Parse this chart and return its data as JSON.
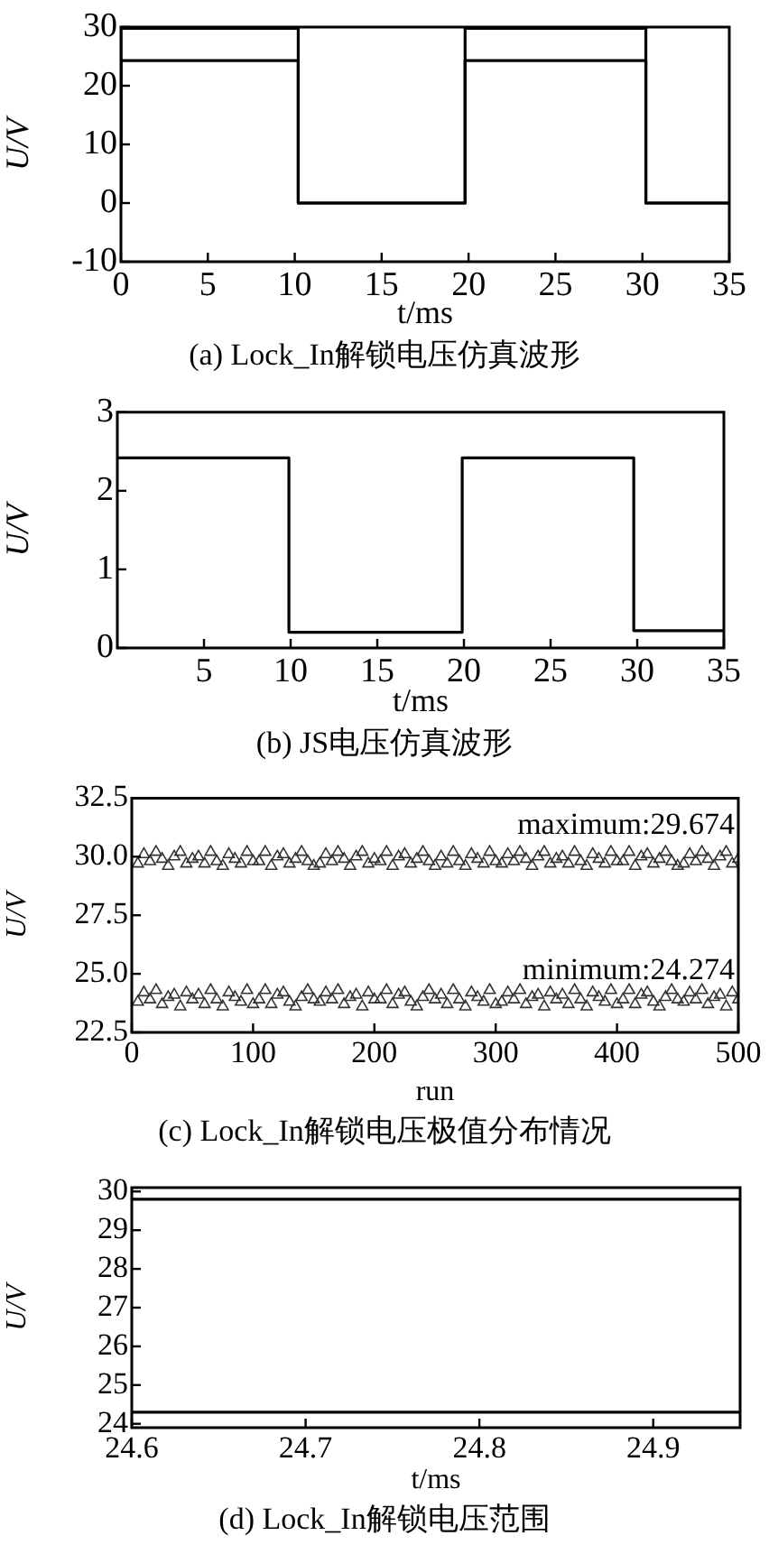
{
  "chart_data": [
    {
      "type": "line",
      "title": "(a) Lock_In解锁电压仿真波形",
      "xlabel": "t/ms",
      "ylabel": "U/V",
      "xlim": [
        0,
        35
      ],
      "ylim": [
        -10,
        30
      ],
      "xticks": [
        0,
        5,
        10,
        15,
        20,
        25,
        30,
        35
      ],
      "yticks": [
        -10,
        0,
        10,
        20,
        30
      ],
      "marker": "none",
      "series": [
        {
          "color": "#000000",
          "x": [
            0,
            0,
            10.2,
            10.2,
            19.8,
            19.8,
            30.2,
            30.2,
            35
          ],
          "values": [
            0,
            29.8,
            29.8,
            0,
            0,
            29.8,
            29.8,
            0,
            0
          ]
        },
        {
          "color": "#000000",
          "x": [
            0,
            0,
            10.2,
            10.2,
            19.8,
            19.8,
            30.2,
            30.2,
            35
          ],
          "values": [
            0,
            24.3,
            24.3,
            0,
            0,
            24.3,
            24.3,
            0,
            0
          ]
        }
      ]
    },
    {
      "type": "line",
      "title": "(b) JS电压仿真波形",
      "xlabel": "t/ms",
      "ylabel": "U/V",
      "xlim": [
        0,
        35
      ],
      "ylim": [
        0,
        3
      ],
      "xticks": [
        5,
        10,
        15,
        20,
        25,
        30,
        35
      ],
      "yticks": [
        0,
        1,
        2,
        3
      ],
      "marker": "none",
      "series": [
        {
          "color": "#000000",
          "x": [
            0,
            9.9,
            9.9,
            19.9,
            19.9,
            29.8,
            29.8,
            35
          ],
          "values": [
            2.42,
            2.42,
            0.2,
            0.2,
            2.42,
            2.42,
            0.22,
            0.22
          ]
        }
      ]
    },
    {
      "type": "scatter",
      "title": "(c) Lock_In解锁电压极值分布情况",
      "xlabel": "run",
      "ylabel": "U/V",
      "xlim": [
        0,
        500
      ],
      "ylim": [
        22.5,
        32.5
      ],
      "xticks": [
        0,
        100,
        200,
        300,
        400,
        500
      ],
      "yticks": [
        {
          "value": 22.5,
          "label": "22.5"
        },
        {
          "value": 25,
          "label": "25.0"
        },
        {
          "value": 27.5,
          "label": "27.5"
        },
        {
          "value": 30,
          "label": "30.0"
        },
        {
          "value": 32.5,
          "label": "32.5"
        }
      ],
      "marker": "triangle",
      "annotations": [
        "maximum:29.674",
        "minimum:24.274"
      ],
      "series": [
        {
          "color": "#333333",
          "x": [
            5,
            10,
            15,
            20,
            25,
            30,
            35,
            40,
            45,
            50,
            55,
            60,
            65,
            70,
            75,
            80,
            85,
            90,
            95,
            100,
            105,
            110,
            115,
            120,
            125,
            130,
            135,
            140,
            145,
            150,
            155,
            160,
            165,
            170,
            175,
            180,
            185,
            190,
            195,
            200,
            205,
            210,
            215,
            220,
            225,
            230,
            235,
            240,
            245,
            250,
            255,
            260,
            265,
            270,
            275,
            280,
            285,
            290,
            295,
            300,
            305,
            310,
            315,
            320,
            325,
            330,
            335,
            340,
            345,
            350,
            355,
            360,
            365,
            370,
            375,
            380,
            385,
            390,
            395,
            400,
            405,
            410,
            415,
            420,
            425,
            430,
            435,
            440,
            445,
            450,
            455,
            460,
            465,
            470,
            475,
            480,
            485,
            490,
            495,
            500
          ],
          "values": [
            29.7,
            30.1,
            29.8,
            30.2,
            29.9,
            29.6,
            30.0,
            30.2,
            29.7,
            29.9,
            30.0,
            29.7,
            30.2,
            29.8,
            29.6,
            30.1,
            29.9,
            29.7,
            30.2,
            29.8,
            29.8,
            30.2,
            29.6,
            30.0,
            30.1,
            29.7,
            29.9,
            30.2,
            29.8,
            29.6,
            29.7,
            30.1,
            29.8,
            30.2,
            29.9,
            29.6,
            30.0,
            30.2,
            29.7,
            29.9,
            29.8,
            30.2,
            29.6,
            30.0,
            30.1,
            29.7,
            29.9,
            30.2,
            29.8,
            29.6,
            30.0,
            29.7,
            30.2,
            29.8,
            29.6,
            30.1,
            29.9,
            29.7,
            30.2,
            29.8,
            29.7,
            30.1,
            29.8,
            30.2,
            29.9,
            29.6,
            30.0,
            30.2,
            29.7,
            29.9,
            30.0,
            29.7,
            30.2,
            29.8,
            29.6,
            30.1,
            29.9,
            29.7,
            30.2,
            29.8,
            29.8,
            30.2,
            29.6,
            30.0,
            30.1,
            29.7,
            29.9,
            30.2,
            29.8,
            29.6,
            29.7,
            30.1,
            29.8,
            30.2,
            29.9,
            29.6,
            30.0,
            30.2,
            29.7,
            29.9
          ]
        },
        {
          "color": "#333333",
          "x": [
            5,
            10,
            15,
            20,
            25,
            30,
            35,
            40,
            45,
            50,
            55,
            60,
            65,
            70,
            75,
            80,
            85,
            90,
            95,
            100,
            105,
            110,
            115,
            120,
            125,
            130,
            135,
            140,
            145,
            150,
            155,
            160,
            165,
            170,
            175,
            180,
            185,
            190,
            195,
            200,
            205,
            210,
            215,
            220,
            225,
            230,
            235,
            240,
            245,
            250,
            255,
            260,
            265,
            270,
            275,
            280,
            285,
            290,
            295,
            300,
            305,
            310,
            315,
            320,
            325,
            330,
            335,
            340,
            345,
            350,
            355,
            360,
            365,
            370,
            375,
            380,
            385,
            390,
            395,
            400,
            405,
            410,
            415,
            420,
            425,
            430,
            435,
            440,
            445,
            450,
            455,
            460,
            465,
            470,
            475,
            480,
            485,
            490,
            495,
            500
          ],
          "values": [
            23.8,
            24.2,
            23.9,
            24.3,
            23.7,
            24.0,
            24.1,
            23.6,
            24.2,
            23.9,
            24.1,
            23.7,
            24.3,
            23.9,
            23.6,
            24.2,
            24.0,
            23.8,
            24.3,
            23.7,
            23.9,
            24.3,
            23.7,
            24.1,
            24.2,
            23.8,
            23.6,
            24.0,
            24.3,
            23.9,
            23.8,
            24.2,
            23.9,
            24.3,
            23.7,
            24.0,
            24.1,
            23.6,
            24.2,
            23.9,
            23.9,
            24.3,
            23.7,
            24.1,
            24.2,
            23.8,
            23.6,
            24.0,
            24.3,
            23.9,
            24.1,
            23.7,
            24.3,
            23.9,
            23.6,
            24.2,
            24.0,
            23.8,
            24.3,
            23.7,
            23.8,
            24.2,
            23.9,
            24.3,
            23.7,
            24.0,
            24.1,
            23.6,
            24.2,
            23.9,
            24.1,
            23.7,
            24.3,
            23.9,
            23.6,
            24.2,
            24.0,
            23.8,
            24.3,
            23.7,
            23.9,
            24.3,
            23.7,
            24.1,
            24.2,
            23.8,
            23.6,
            24.0,
            24.3,
            23.9,
            23.8,
            24.2,
            23.9,
            24.3,
            23.7,
            24.0,
            24.1,
            23.6,
            24.2,
            23.9
          ]
        }
      ]
    },
    {
      "type": "line",
      "title": "(d) Lock_In解锁电压范围",
      "xlabel": "t/ms",
      "ylabel": "U/V",
      "xlim": [
        24.6,
        24.95
      ],
      "ylim": [
        23.9,
        30.1
      ],
      "xticks": [
        24.6,
        24.7,
        24.8,
        24.9
      ],
      "yticks": [
        24,
        25,
        26,
        27,
        28,
        29,
        30
      ],
      "marker": "none",
      "series": [
        {
          "color": "#000000",
          "x": [
            24.6,
            24.95
          ],
          "values": [
            29.8,
            29.8
          ]
        },
        {
          "color": "#000000",
          "x": [
            24.6,
            24.95
          ],
          "values": [
            24.3,
            24.3
          ]
        }
      ]
    }
  ]
}
